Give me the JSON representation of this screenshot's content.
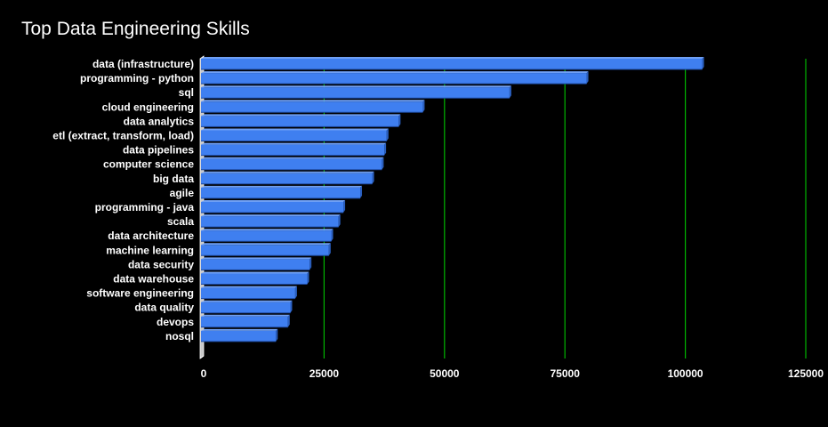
{
  "chart_data": {
    "type": "bar",
    "orientation": "horizontal",
    "title": "Top Data Engineering Skills",
    "xlabel": "",
    "ylabel": "",
    "categories": [
      "data (infrastructure)",
      "programming - python",
      "sql",
      "cloud engineering",
      "data analytics",
      "etl (extract, transform, load)",
      "data pipelines",
      "computer science",
      "big data",
      "agile",
      "programming - java",
      "scala",
      "data architecture",
      "machine learning",
      "data security",
      "data warehouse",
      "software engineering",
      "data quality",
      "devops",
      "nosql"
    ],
    "values": [
      103500,
      79500,
      63500,
      45500,
      40500,
      38000,
      37500,
      37000,
      35000,
      32500,
      29000,
      28000,
      26500,
      26000,
      22000,
      21500,
      19000,
      18000,
      17500,
      15000
    ],
    "xlim": [
      0,
      125000
    ],
    "xticks": [
      0,
      25000,
      50000,
      75000,
      100000,
      125000
    ],
    "xtick_labels": [
      "0",
      "25000",
      "50000",
      "75000",
      "100000",
      "125000"
    ],
    "grid": "vertical",
    "colors": {
      "bar": "#3f7ff0",
      "bar_side": "#6f9ff4",
      "grid": "#00b400",
      "background": "#000000",
      "text": "#ffffff"
    }
  }
}
